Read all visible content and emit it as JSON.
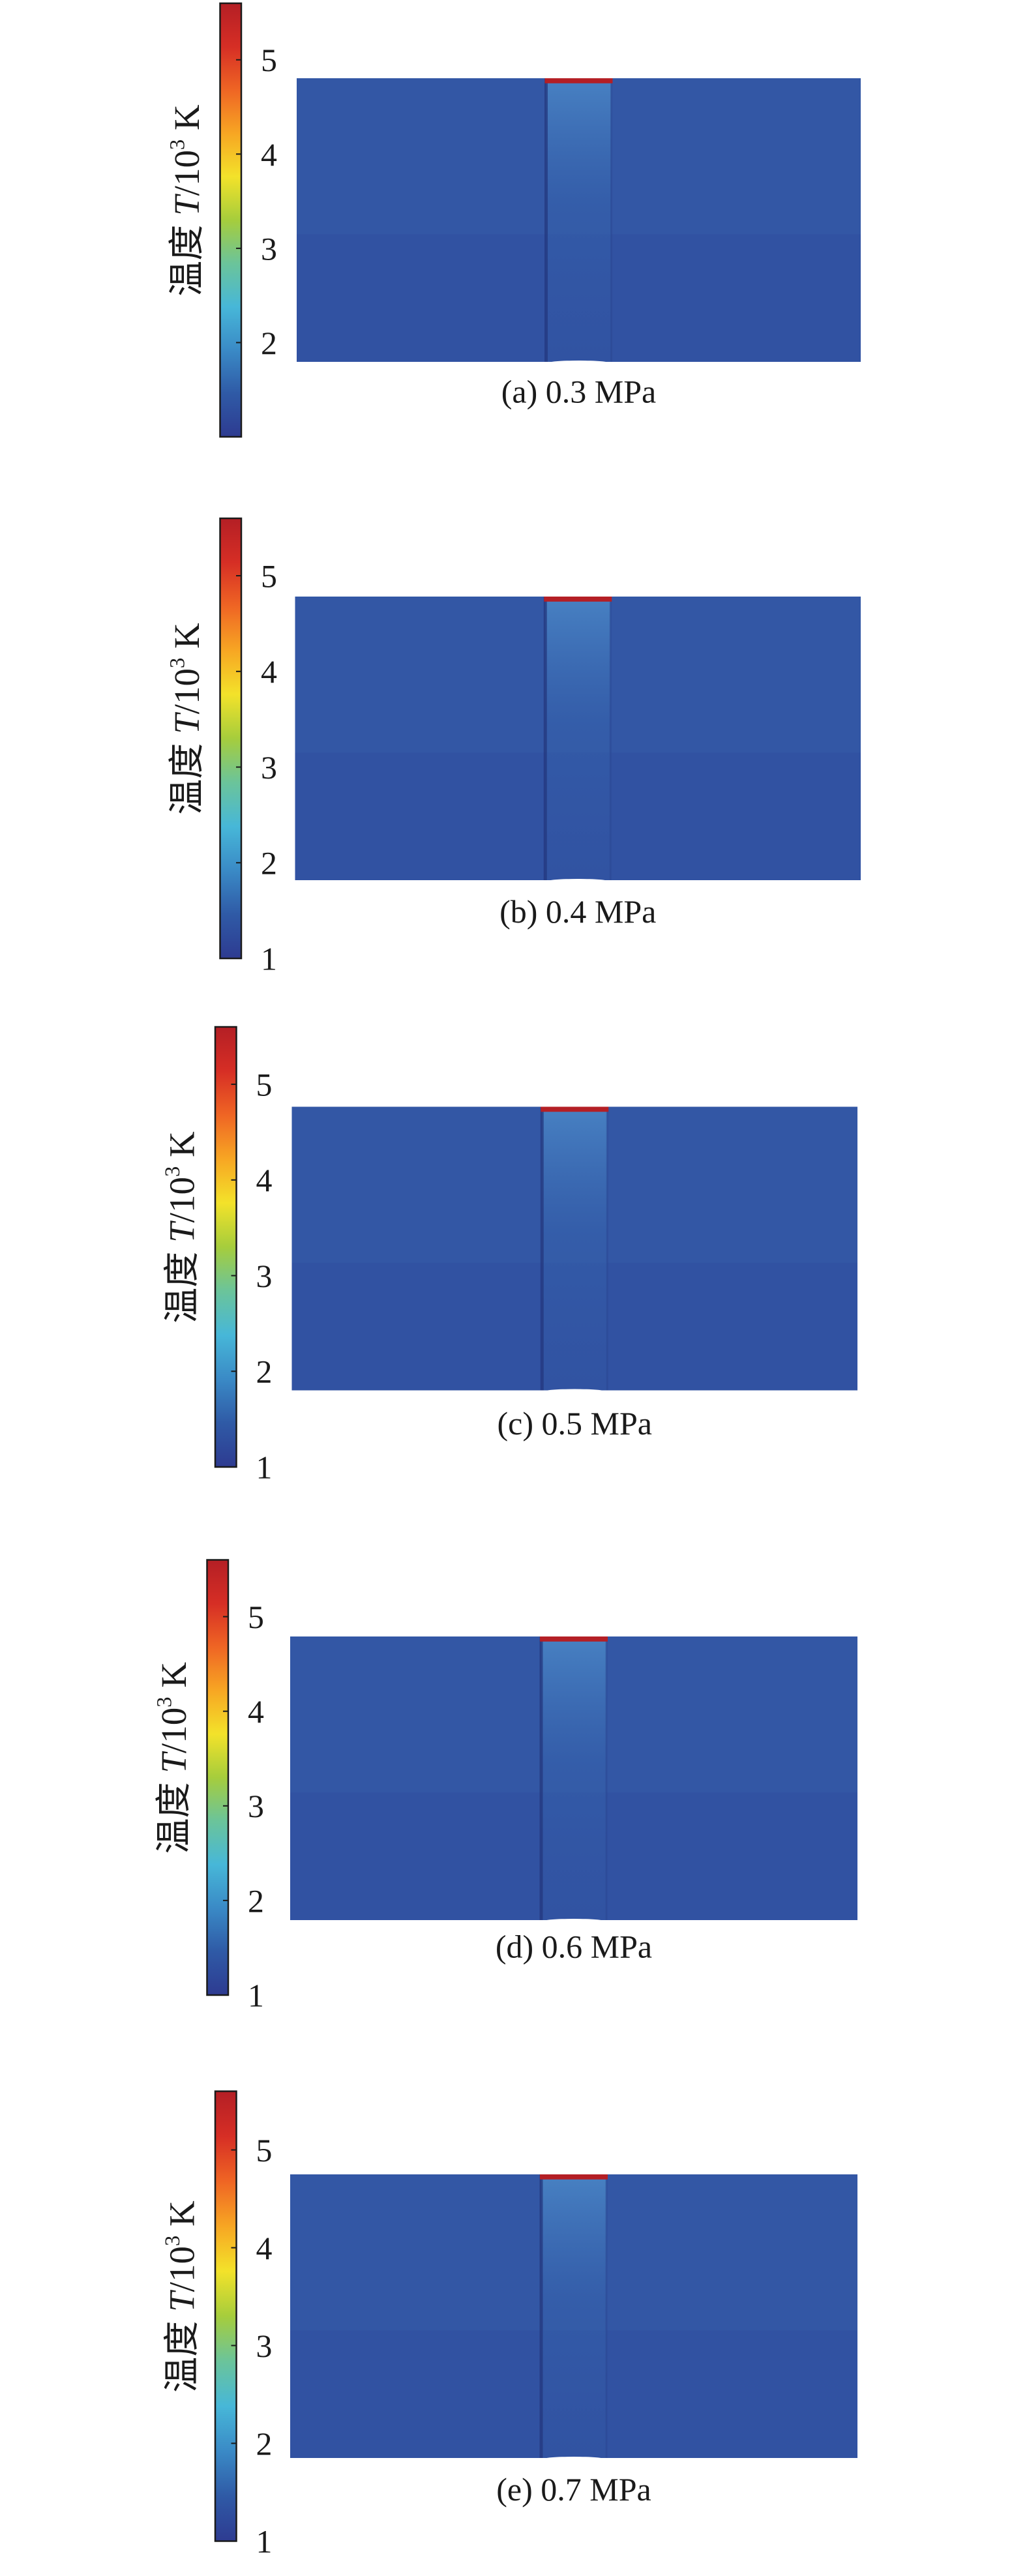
{
  "figure": {
    "colorbar_label_prefix": "温度 ",
    "colorbar_label_var": "T",
    "colorbar_label_unit_base": "/10",
    "colorbar_label_unit_exp": "3",
    "colorbar_label_unit_suffix": " K",
    "colorbar_range": [
      1,
      5.6
    ],
    "colormap": [
      "#2e3b91",
      "#2f5aa6",
      "#3a8ac6",
      "#47b7d8",
      "#6bc49a",
      "#a6cd3c",
      "#f3e22a",
      "#f7a623",
      "#ef6524",
      "#d62e25",
      "#b41f25"
    ],
    "panels": [
      {
        "caption": "(a) 0.3 MPa",
        "ticks": [
          "2",
          "3",
          "4",
          "5"
        ]
      },
      {
        "caption": "(b) 0.4 MPa",
        "ticks": [
          "1",
          "2",
          "3",
          "4",
          "5"
        ]
      },
      {
        "caption": "(c) 0.5 MPa",
        "ticks": [
          "1",
          "2",
          "3",
          "4",
          "5"
        ]
      },
      {
        "caption": "(d) 0.6 MPa",
        "ticks": [
          "1",
          "2",
          "3",
          "4",
          "5"
        ]
      },
      {
        "caption": "(e) 0.7 MPa",
        "ticks": [
          "1",
          "2",
          "3",
          "4",
          "5"
        ]
      }
    ]
  }
}
